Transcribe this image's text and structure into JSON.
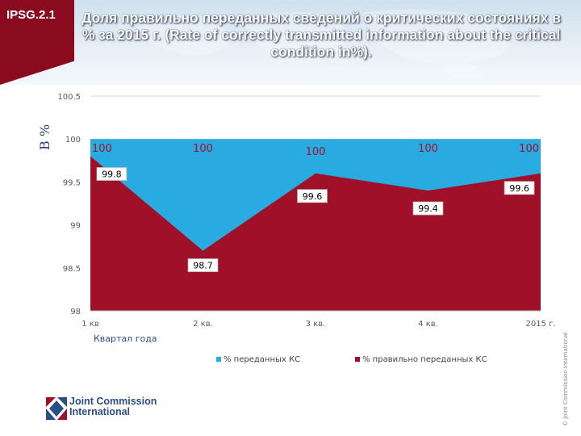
{
  "badge": "IPSG.2.1",
  "title": "Доля правильно переданных сведений о критических состояниях  в % за 2015 г. (Rate of correctly transmitted information about the critical condition in%).",
  "ylabel": "В %",
  "colors": {
    "series1": "#29aae1",
    "series2": "#a01129",
    "badge": "#8a0a1e"
  },
  "chart_data": {
    "type": "area",
    "categories": [
      "1 кв",
      "2 кв.",
      "3 кв.",
      "4 кв.",
      "2015 г."
    ],
    "series": [
      {
        "name": "% переданных КС",
        "values": [
          100,
          100,
          100,
          100,
          100
        ]
      },
      {
        "name": "% правильно переданных КС",
        "values": [
          99.8,
          98.7,
          99.6,
          99.4,
          99.6
        ]
      }
    ],
    "ylim": [
      98,
      100.5
    ],
    "yticks": [
      "100.5",
      "100",
      "99.5",
      "99",
      "98.5",
      "98"
    ],
    "xlabel": "Квартал года",
    "ylabel": "В %",
    "grid": true,
    "legend": "bottom"
  },
  "logo": {
    "line1": "Joint Commission",
    "line2": "International"
  },
  "copyright": "© Joint Commission International"
}
